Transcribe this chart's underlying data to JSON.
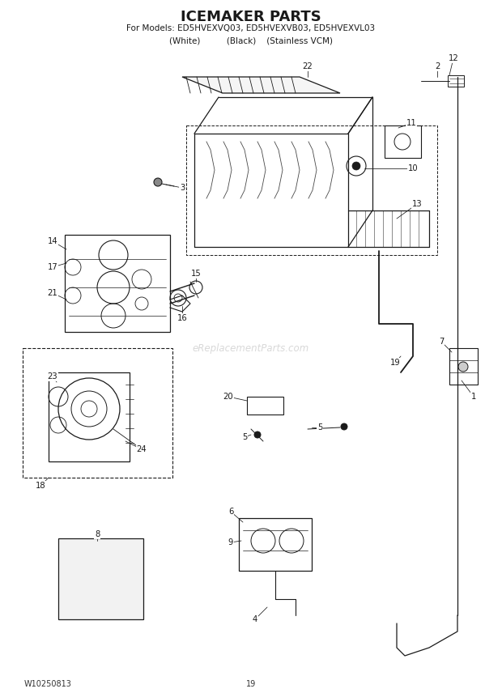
{
  "title": "ICEMAKER PARTS",
  "subtitle1": "For Models: ED5HVEXVQ03, ED5HVEXVB03, ED5HVEXVL03",
  "subtitle2": "(White)          (Black)    (Stainless VCM)",
  "footer_left": "W10250813",
  "footer_center": "19",
  "bg_color": "#ffffff",
  "title_fontsize": 13,
  "subtitle_fontsize": 7.5,
  "footer_fontsize": 7,
  "watermark": "eReplacementParts.com",
  "col": "#1a1a1a"
}
